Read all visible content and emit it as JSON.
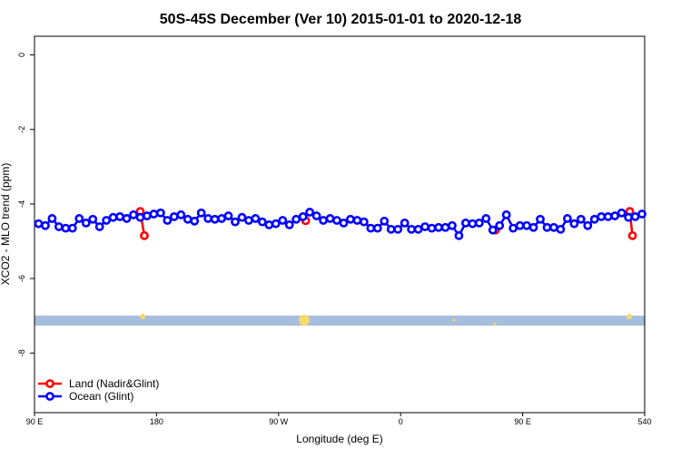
{
  "chart_data": {
    "type": "line",
    "title": "50S-45S December (Ver 10)   2015-01-01 to 2020-12-18",
    "xlabel": "Longitude (deg E)",
    "ylabel": "XCO2 - MLO trend (ppm)",
    "xlim": [
      90,
      540
    ],
    "ylim": [
      -9.6,
      0.5
    ],
    "xticks": [
      {
        "value": 90,
        "label": "90 E"
      },
      180,
      {
        "value": 270,
        "label": "90 W"
      },
      {
        "value": 360,
        "label": "0"
      },
      {
        "value": 450,
        "label": "90 E"
      },
      540
    ],
    "yticks": [
      0,
      -2,
      -4,
      -6,
      -8
    ],
    "legend": "bottom-left",
    "series": [
      {
        "name": "Land (Nadir&Glint)",
        "color": "#ff0000",
        "x": [
          168,
          171,
          250,
          290,
          400,
          430,
          500,
          529,
          531
        ],
        "values": [
          -4.2,
          -4.85,
          null,
          -4.45,
          null,
          -4.7,
          null,
          -4.2,
          -4.85
        ]
      },
      {
        "name": "Ocean (Glint)",
        "color": "#0000ff",
        "x": [
          93,
          98,
          103,
          108,
          113,
          118,
          123,
          128,
          133,
          138,
          143,
          148,
          153,
          158,
          163,
          168,
          173,
          178,
          183,
          188,
          193,
          198,
          203,
          208,
          213,
          218,
          223,
          228,
          233,
          238,
          243,
          248,
          253,
          258,
          263,
          268,
          273,
          278,
          283,
          288,
          293,
          298,
          303,
          308,
          313,
          318,
          323,
          328,
          333,
          338,
          343,
          348,
          353,
          358,
          363,
          368,
          373,
          378,
          383,
          388,
          393,
          398,
          403,
          408,
          413,
          418,
          423,
          428,
          433,
          438,
          443,
          448,
          453,
          458,
          463,
          468,
          473,
          478,
          483,
          488,
          493,
          498,
          503,
          508,
          513,
          518,
          523,
          528,
          533,
          538
        ],
        "values": [
          -4.53,
          -4.58,
          -4.39,
          -4.61,
          -4.65,
          -4.65,
          -4.39,
          -4.51,
          -4.41,
          -4.61,
          -4.44,
          -4.36,
          -4.34,
          -4.39,
          -4.29,
          -4.36,
          -4.32,
          -4.27,
          -4.24,
          -4.44,
          -4.34,
          -4.29,
          -4.41,
          -4.46,
          -4.24,
          -4.39,
          -4.41,
          -4.39,
          -4.32,
          -4.48,
          -4.36,
          -4.44,
          -4.39,
          -4.48,
          -4.56,
          -4.53,
          -4.44,
          -4.56,
          -4.41,
          -4.34,
          -4.22,
          -4.32,
          -4.44,
          -4.39,
          -4.44,
          -4.51,
          -4.41,
          -4.44,
          -4.48,
          -4.65,
          -4.65,
          -4.46,
          -4.68,
          -4.68,
          -4.51,
          -4.68,
          -4.68,
          -4.61,
          -4.65,
          -4.63,
          -4.63,
          -4.58,
          -4.85,
          -4.51,
          -4.53,
          -4.51,
          -4.39,
          -4.7,
          -4.58,
          -4.29,
          -4.65,
          -4.58,
          -4.58,
          -4.63,
          -4.41,
          -4.63,
          -4.63,
          -4.68,
          -4.39,
          -4.53,
          -4.41,
          -4.58,
          -4.41,
          -4.34,
          -4.34,
          -4.32,
          -4.24,
          -4.36,
          -4.34,
          -4.27
        ]
      }
    ]
  }
}
